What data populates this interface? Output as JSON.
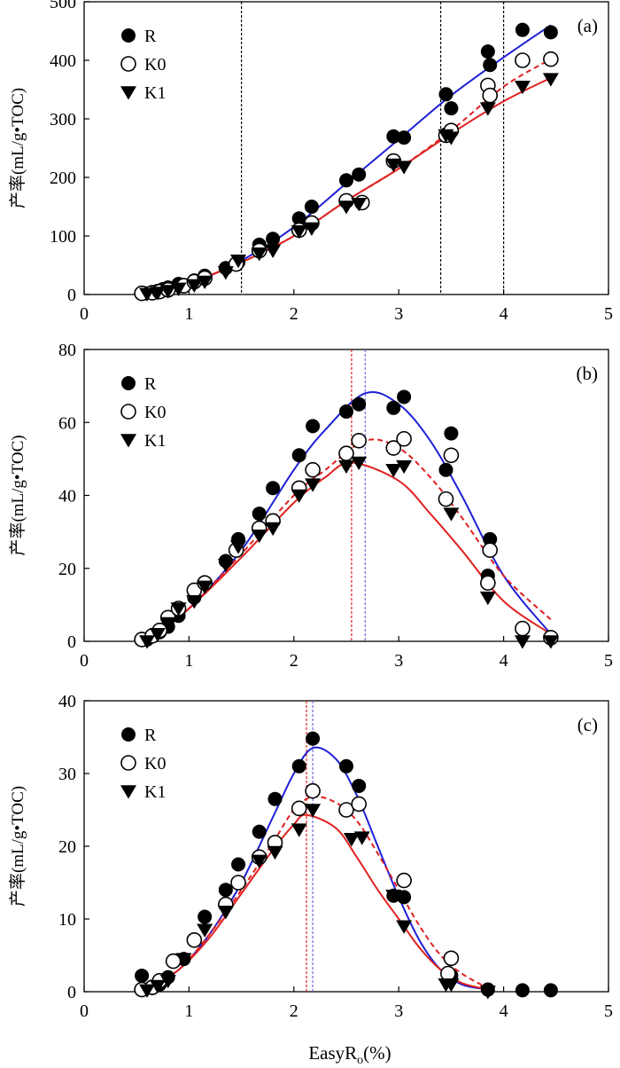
{
  "shared_xlabel": "EasyRo(%)",
  "shared_xlabel_main": "EasyR",
  "shared_xlabel_sub": "o",
  "shared_xlabel_tail": "(%)",
  "marker_colors": {
    "R": "#000000",
    "K0": "#000000",
    "K1": "#000000"
  },
  "line_colors": {
    "R": "#1f1fd6",
    "K0": "#e02020",
    "K1": "#e02020"
  },
  "chart_data": [
    {
      "type": "scatter",
      "panel_label": "(a)",
      "ylabel": "产率(mL/g•TOC)",
      "xlim": [
        0,
        5
      ],
      "ylim": [
        0,
        500
      ],
      "xticks": [
        0,
        1,
        2,
        3,
        4,
        5
      ],
      "yticks": [
        0,
        100,
        200,
        300,
        400,
        500
      ],
      "legend": [
        "R",
        "K0",
        "K1"
      ],
      "legend_position": "top-left",
      "vlines": [
        {
          "x": 1.5,
          "color": "#000000",
          "style": "dashed"
        },
        {
          "x": 3.4,
          "color": "#000000",
          "style": "dashed"
        },
        {
          "x": 4.0,
          "color": "#000000",
          "style": "dashed"
        }
      ],
      "series": [
        {
          "name": "R",
          "marker": "filled-circle",
          "x": [
            0.58,
            0.65,
            0.7,
            0.75,
            0.8,
            0.9,
            1.05,
            1.15,
            1.35,
            1.47,
            1.67,
            1.8,
            2.05,
            2.17,
            2.5,
            2.62,
            2.95,
            3.05,
            3.45,
            3.5,
            3.85,
            3.87,
            4.18,
            4.45
          ],
          "y": [
            2,
            4,
            6,
            9,
            12,
            18,
            24,
            32,
            45,
            55,
            85,
            95,
            130,
            150,
            195,
            205,
            270,
            268,
            342,
            318,
            415,
            392,
            452,
            448
          ]
        },
        {
          "name": "K0",
          "marker": "open-circle",
          "x": [
            0.55,
            0.65,
            0.72,
            0.8,
            0.95,
            1.05,
            1.15,
            1.45,
            1.67,
            2.05,
            2.17,
            2.5,
            2.65,
            2.95,
            3.45,
            3.5,
            3.85,
            3.87,
            4.18,
            4.45
          ],
          "y": [
            2,
            3,
            5,
            8,
            15,
            22,
            28,
            52,
            75,
            110,
            122,
            160,
            157,
            228,
            272,
            280,
            357,
            340,
            400,
            402
          ]
        },
        {
          "name": "K1",
          "marker": "filled-triangle-down",
          "x": [
            0.6,
            0.7,
            0.8,
            0.9,
            1.05,
            1.15,
            1.35,
            1.47,
            1.67,
            1.8,
            2.05,
            2.17,
            2.5,
            2.62,
            2.95,
            3.05,
            3.45,
            3.5,
            3.85,
            4.18,
            4.45
          ],
          "y": [
            1,
            3,
            6,
            10,
            16,
            22,
            38,
            58,
            70,
            75,
            108,
            113,
            150,
            155,
            222,
            218,
            272,
            268,
            318,
            355,
            368
          ]
        }
      ],
      "fit_lines": [
        {
          "name": "R",
          "style": "solid",
          "color": "#1f1fd6",
          "x": [
            0.6,
            1.0,
            1.5,
            2.0,
            2.5,
            3.0,
            3.5,
            4.0,
            4.45
          ],
          "y": [
            0,
            18,
            58,
            115,
            190,
            265,
            340,
            405,
            460
          ]
        },
        {
          "name": "K0",
          "style": "dashed",
          "color": "#e02020",
          "x": [
            0.6,
            1.0,
            1.5,
            2.0,
            2.5,
            3.0,
            3.5,
            4.0,
            4.45
          ],
          "y": [
            0,
            20,
            55,
            100,
            160,
            215,
            280,
            355,
            402
          ]
        },
        {
          "name": "K1",
          "style": "solid",
          "color": "#e02020",
          "x": [
            0.6,
            1.0,
            1.5,
            2.0,
            2.5,
            3.0,
            3.5,
            4.0,
            4.45
          ],
          "y": [
            0,
            20,
            55,
            100,
            160,
            215,
            275,
            330,
            370
          ]
        }
      ]
    },
    {
      "type": "scatter",
      "panel_label": "(b)",
      "ylabel": "产率(mL/g•TOC)",
      "xlim": [
        0,
        5
      ],
      "ylim": [
        0,
        80
      ],
      "xticks": [
        0,
        1,
        2,
        3,
        4,
        5
      ],
      "yticks": [
        0,
        20,
        40,
        60,
        80
      ],
      "legend": [
        "R",
        "K0",
        "K1"
      ],
      "legend_position": "top-left",
      "vlines": [
        {
          "x": 2.55,
          "color": "#e02020",
          "style": "dashed"
        },
        {
          "x": 2.68,
          "color": "#6a6ae0",
          "style": "dashed"
        }
      ],
      "series": [
        {
          "name": "R",
          "marker": "filled-circle",
          "x": [
            0.6,
            0.65,
            0.72,
            0.8,
            0.9,
            1.05,
            1.15,
            1.35,
            1.47,
            1.67,
            1.8,
            2.05,
            2.18,
            2.5,
            2.62,
            2.95,
            3.05,
            3.45,
            3.5,
            3.85,
            3.87,
            4.45
          ],
          "y": [
            0.5,
            1.5,
            2.5,
            4,
            7,
            12,
            16,
            22,
            28,
            35,
            42,
            51,
            59,
            63,
            65,
            64,
            67,
            47,
            57,
            18,
            28,
            1
          ]
        },
        {
          "name": "K0",
          "marker": "open-circle",
          "x": [
            0.55,
            0.65,
            0.72,
            0.8,
            0.9,
            1.05,
            1.15,
            1.45,
            1.67,
            1.8,
            2.05,
            2.18,
            2.5,
            2.62,
            2.95,
            3.05,
            3.45,
            3.5,
            3.85,
            3.87,
            4.18,
            4.45
          ],
          "y": [
            0.5,
            1.5,
            3,
            6.5,
            9,
            14,
            16,
            25,
            31,
            33,
            42,
            47,
            51.5,
            55,
            53,
            55.5,
            39,
            51,
            16,
            25,
            3.5,
            1
          ]
        },
        {
          "name": "K1",
          "marker": "filled-triangle-down",
          "x": [
            0.6,
            0.7,
            0.8,
            0.9,
            1.05,
            1.15,
            1.35,
            1.47,
            1.67,
            1.8,
            2.05,
            2.18,
            2.5,
            2.62,
            2.95,
            3.05,
            3.5,
            3.85,
            4.18,
            4.45
          ],
          "y": [
            0,
            2,
            5,
            9,
            11,
            15,
            21,
            26,
            29,
            31,
            40,
            43,
            48,
            49,
            47,
            48,
            35,
            12,
            0,
            0
          ]
        }
      ],
      "fit_lines": [
        {
          "name": "R",
          "style": "solid",
          "color": "#1f1fd6",
          "x": [
            0.6,
            1.0,
            1.5,
            2.0,
            2.3,
            2.68,
            3.0,
            3.3,
            3.6,
            4.0,
            4.45
          ],
          "y": [
            0,
            9,
            25,
            47,
            58,
            68,
            65,
            55,
            40,
            18,
            2
          ]
        },
        {
          "name": "K0",
          "style": "dashed",
          "color": "#e02020",
          "x": [
            0.6,
            1.0,
            1.5,
            2.0,
            2.3,
            2.68,
            3.0,
            3.3,
            3.6,
            4.0,
            4.45
          ],
          "y": [
            0,
            9,
            24,
            40,
            47,
            55,
            53,
            45,
            34,
            18,
            6
          ]
        },
        {
          "name": "K1",
          "style": "solid",
          "color": "#e02020",
          "x": [
            0.6,
            1.0,
            1.5,
            2.0,
            2.3,
            2.55,
            3.0,
            3.3,
            3.6,
            4.0,
            4.45
          ],
          "y": [
            0,
            9,
            23,
            38,
            45,
            49,
            44,
            35,
            25,
            11,
            2
          ]
        }
      ]
    },
    {
      "type": "scatter",
      "panel_label": "(c)",
      "ylabel": "产率(mL/g•TOC)",
      "xlim": [
        0,
        5
      ],
      "ylim": [
        0,
        40
      ],
      "xticks": [
        0,
        1,
        2,
        3,
        4,
        5
      ],
      "yticks": [
        0,
        10,
        20,
        30,
        40
      ],
      "legend": [
        "R",
        "K0",
        "K1"
      ],
      "legend_position": "top-left",
      "vlines": [
        {
          "x": 2.12,
          "color": "#e02020",
          "style": "dashed"
        },
        {
          "x": 2.18,
          "color": "#6a6ae0",
          "style": "dashed"
        }
      ],
      "series": [
        {
          "name": "R",
          "marker": "filled-circle",
          "x": [
            0.55,
            0.65,
            0.72,
            0.8,
            0.95,
            1.15,
            1.35,
            1.47,
            1.67,
            1.82,
            2.05,
            2.18,
            2.5,
            2.62,
            2.95,
            3.05,
            3.5,
            3.85,
            4.18,
            4.45
          ],
          "y": [
            2.2,
            0.5,
            1,
            2,
            4.5,
            10.3,
            14,
            17.5,
            22,
            26.5,
            31,
            34.8,
            31,
            28.3,
            13.2,
            13,
            2.2,
            0.3,
            0.2,
            0.2
          ]
        },
        {
          "name": "K0",
          "marker": "open-circle",
          "x": [
            0.55,
            0.65,
            0.72,
            0.85,
            1.05,
            1.35,
            1.47,
            1.67,
            1.82,
            2.05,
            2.18,
            2.5,
            2.62,
            3.05,
            3.47,
            3.5
          ],
          "y": [
            0.3,
            0.6,
            1.5,
            4.2,
            7.1,
            12,
            15,
            18.5,
            20.5,
            25.2,
            27.6,
            25,
            25.8,
            15.3,
            2.5,
            4.6
          ]
        },
        {
          "name": "K1",
          "marker": "filled-triangle-down",
          "x": [
            0.6,
            0.7,
            0.8,
            0.95,
            1.15,
            1.35,
            1.67,
            1.82,
            2.05,
            2.18,
            2.55,
            2.65,
            2.95,
            3.05,
            3.45,
            3.5,
            3.85
          ],
          "y": [
            0.2,
            0.8,
            1.5,
            4.5,
            8.5,
            11,
            18,
            19.2,
            22.3,
            25,
            21,
            21.2,
            13.2,
            9,
            1,
            1,
            0
          ]
        }
      ],
      "fit_lines": [
        {
          "name": "R",
          "style": "solid",
          "color": "#1f1fd6",
          "x": [
            0.6,
            0.9,
            1.2,
            1.5,
            1.8,
            2.0,
            2.18,
            2.4,
            2.6,
            2.8,
            3.0,
            3.2,
            3.4,
            3.6,
            3.85
          ],
          "y": [
            0.5,
            3,
            8,
            15,
            24,
            30,
            33.5,
            32,
            27,
            20,
            13,
            7,
            3,
            1,
            0.3
          ]
        },
        {
          "name": "K0",
          "style": "dashed",
          "color": "#e02020",
          "x": [
            0.6,
            0.9,
            1.2,
            1.5,
            1.8,
            2.0,
            2.18,
            2.4,
            2.6,
            2.8,
            3.0,
            3.2,
            3.4,
            3.6,
            3.85
          ],
          "y": [
            0.5,
            3,
            8,
            14,
            20.5,
            25,
            26.8,
            26,
            23.5,
            19,
            14,
            9,
            5,
            2.5,
            0.5
          ]
        },
        {
          "name": "K1",
          "style": "solid",
          "color": "#e02020",
          "x": [
            0.6,
            0.9,
            1.2,
            1.5,
            1.8,
            2.0,
            2.12,
            2.4,
            2.6,
            2.8,
            3.0,
            3.2,
            3.4,
            3.6,
            3.85
          ],
          "y": [
            0.5,
            3,
            7.5,
            13.5,
            19.5,
            23,
            24.3,
            22.5,
            18.5,
            14,
            10,
            6,
            3,
            1.2,
            0.3
          ]
        }
      ]
    }
  ]
}
